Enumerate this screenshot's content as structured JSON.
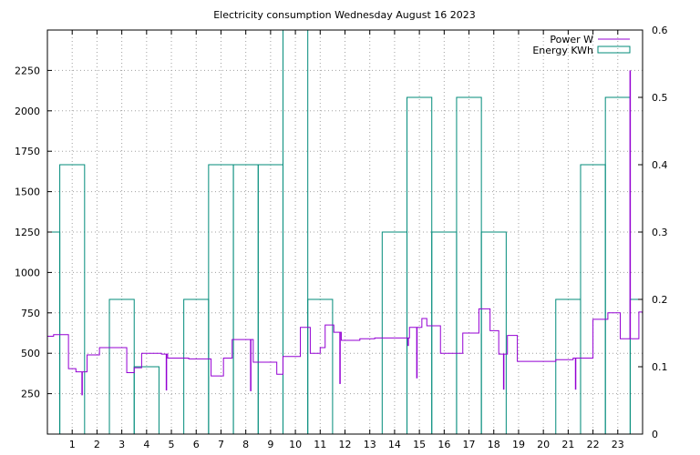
{
  "chart_data": {
    "type": "line",
    "title": "Electricity consumption Wednesday August 16 2023",
    "legend_position": "top-right",
    "grid": true,
    "x_ticks": [
      "1",
      "2",
      "3",
      "4",
      "5",
      "6",
      "7",
      "8",
      "9",
      "10",
      "11",
      "12",
      "13",
      "14",
      "15",
      "16",
      "17",
      "18",
      "19",
      "20",
      "21",
      "22",
      "23"
    ],
    "xlim": [
      0,
      24
    ],
    "y_left_ticks": [
      "250",
      "500",
      "750",
      "1000",
      "1250",
      "1500",
      "1750",
      "2000",
      "2250"
    ],
    "y_left_lim": [
      0,
      2500
    ],
    "y_right_ticks": [
      "0",
      "0.1",
      "0.2",
      "0.3",
      "0.4",
      "0.5",
      "0.6"
    ],
    "y_right_lim": [
      0,
      0.6
    ],
    "series": [
      {
        "name": "Power W",
        "color": "#9400d3",
        "axis": "left",
        "style": "steps",
        "points": [
          [
            0,
            605
          ],
          [
            0.25,
            615
          ],
          [
            0.85,
            405
          ],
          [
            1.15,
            385
          ],
          [
            1.6,
            490
          ],
          [
            2.1,
            535
          ],
          [
            2.85,
            535
          ],
          [
            3.2,
            380
          ],
          [
            3.5,
            410
          ],
          [
            3.8,
            500
          ],
          [
            4.6,
            495
          ],
          [
            4.85,
            470
          ],
          [
            5.7,
            465
          ],
          [
            6.6,
            360
          ],
          [
            7.1,
            470
          ],
          [
            7.45,
            585
          ],
          [
            8.3,
            445
          ],
          [
            8.9,
            445
          ],
          [
            9.25,
            370
          ],
          [
            9.5,
            480
          ],
          [
            10.2,
            660
          ],
          [
            10.6,
            500
          ],
          [
            11.0,
            535
          ],
          [
            11.2,
            675
          ],
          [
            11.55,
            630
          ],
          [
            11.85,
            580
          ],
          [
            12.6,
            590
          ],
          [
            13.2,
            595
          ],
          [
            14.25,
            595
          ],
          [
            14.6,
            660
          ],
          [
            15.1,
            715
          ],
          [
            15.3,
            670
          ],
          [
            15.85,
            500
          ],
          [
            16.75,
            625
          ],
          [
            17.4,
            775
          ],
          [
            17.85,
            640
          ],
          [
            18.2,
            495
          ],
          [
            18.55,
            610
          ],
          [
            18.95,
            450
          ],
          [
            19.9,
            450
          ],
          [
            20.5,
            460
          ],
          [
            21.2,
            470
          ],
          [
            21.65,
            470
          ],
          [
            22.0,
            710
          ],
          [
            22.6,
            750
          ],
          [
            23.1,
            590
          ],
          [
            23.6,
            590
          ],
          [
            23.85,
            755
          ],
          [
            24.0,
            790
          ]
        ],
        "spikes": [
          [
            1.4,
            240
          ],
          [
            4.8,
            270
          ],
          [
            8.2,
            265
          ],
          [
            11.8,
            310
          ],
          [
            14.55,
            545
          ],
          [
            14.9,
            345
          ],
          [
            18.4,
            275
          ],
          [
            21.3,
            275
          ],
          [
            23.5,
            2250
          ]
        ]
      },
      {
        "name": "Energy KWh",
        "color": "#008b7a",
        "axis": "right",
        "style": "boxes",
        "boxes": [
          [
            -0.5,
            0.5,
            0.3
          ],
          [
            0.5,
            1.5,
            0.4
          ],
          [
            1.5,
            2.5,
            0
          ],
          [
            2.5,
            3.5,
            0.2
          ],
          [
            3.5,
            4.5,
            0.1
          ],
          [
            4.5,
            5.5,
            0
          ],
          [
            5.5,
            6.5,
            0.2
          ],
          [
            6.5,
            7.5,
            0.4
          ],
          [
            7.5,
            8.5,
            0.4
          ],
          [
            8.5,
            9.5,
            0.4
          ],
          [
            9.5,
            10.5,
            0.6
          ],
          [
            10.5,
            11.5,
            0.2
          ],
          [
            11.5,
            12.5,
            0
          ],
          [
            12.5,
            13.5,
            0
          ],
          [
            13.5,
            14.5,
            0.3
          ],
          [
            14.5,
            15.5,
            0.5
          ],
          [
            15.5,
            16.5,
            0.3
          ],
          [
            16.5,
            17.5,
            0.5
          ],
          [
            17.5,
            18.5,
            0.3
          ],
          [
            18.5,
            19.5,
            0
          ],
          [
            19.5,
            20.5,
            0
          ],
          [
            20.5,
            21.5,
            0.2
          ],
          [
            21.5,
            22.5,
            0.4
          ],
          [
            22.5,
            23.5,
            0.5
          ],
          [
            23.5,
            24.5,
            0.2
          ]
        ]
      }
    ]
  }
}
